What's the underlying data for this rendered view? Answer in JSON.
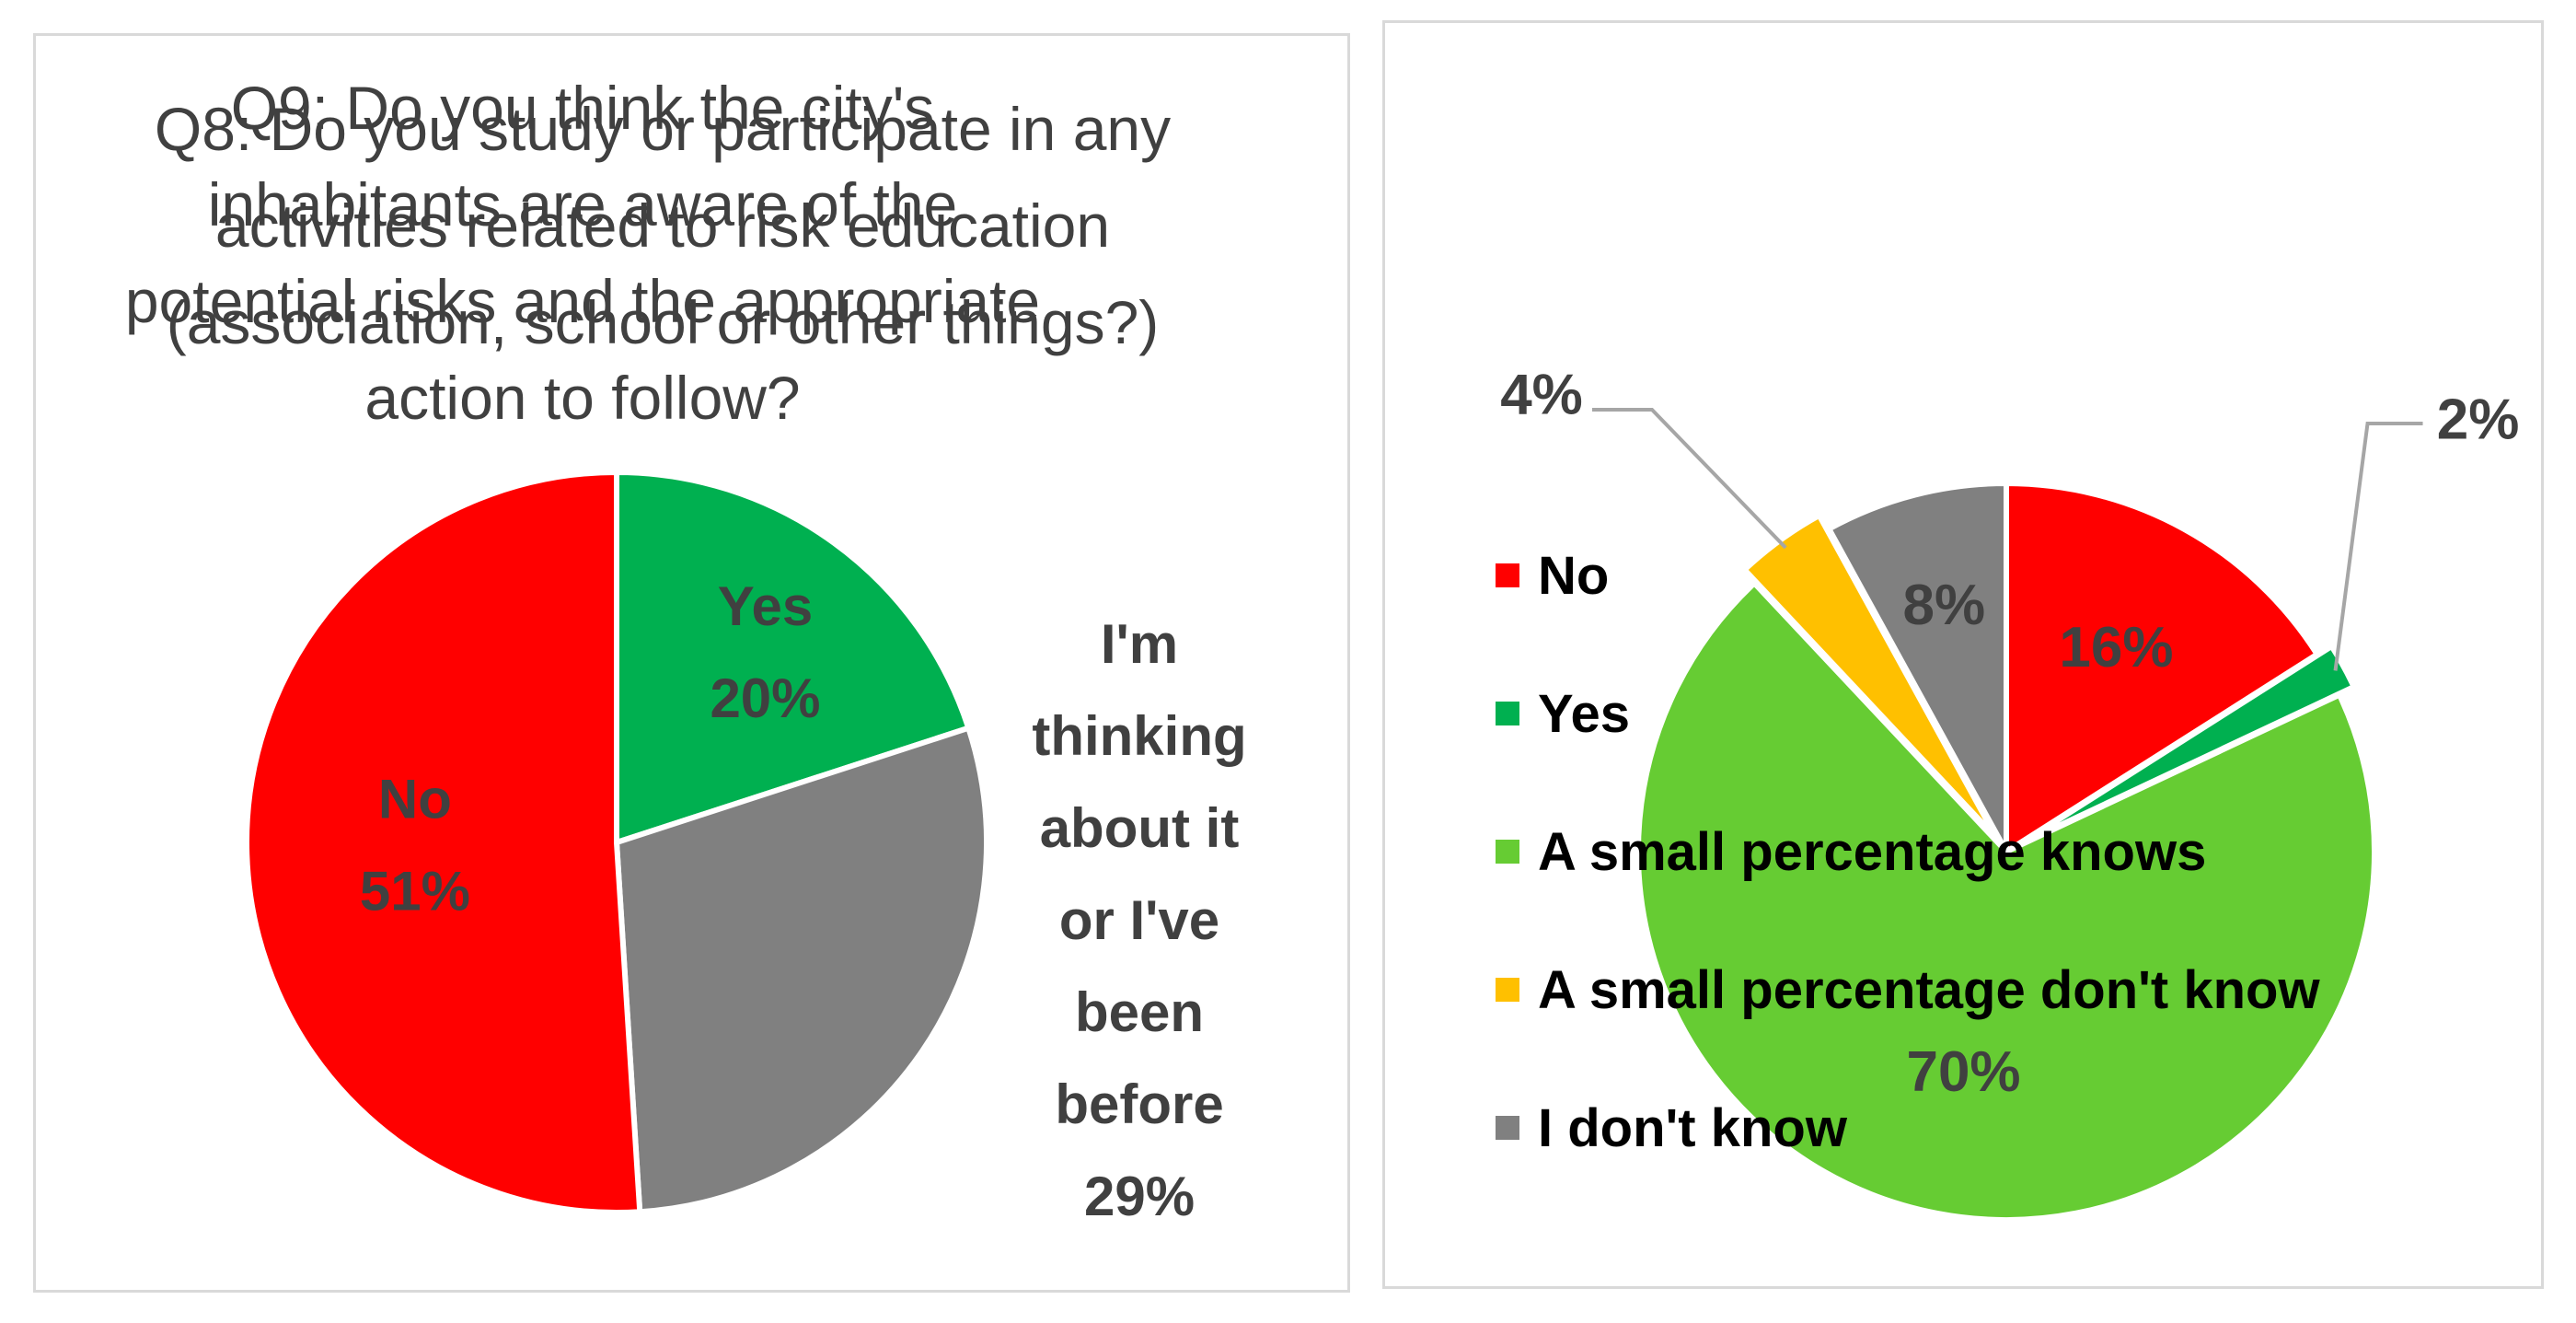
{
  "chart_data": [
    {
      "type": "pie",
      "title": "Q8: Do you study or participate in any activities related to risk education (association, school or other things?)",
      "slices": [
        {
          "name": "Yes",
          "value": 20,
          "label": "20%",
          "color": "#00b050"
        },
        {
          "name": "I'm thinking about it or I've been before",
          "value": 29,
          "label": "29%",
          "color": "#808080"
        },
        {
          "name": "No",
          "value": 51,
          "label": "51%",
          "color": "#ff0000"
        }
      ],
      "outside_label_text": [
        "I'm",
        "thinking",
        "about it",
        "or I've",
        "been",
        "before",
        "29%"
      ]
    },
    {
      "type": "pie",
      "title": "Q9: Do you think the city's inhabitants are aware of the potential risks and the appropriate action to follow?",
      "slices": [
        {
          "name": "No",
          "value": 16,
          "label": "16%",
          "color": "#ff0000"
        },
        {
          "name": "Yes",
          "value": 2,
          "label": "2%",
          "color": "#00b050"
        },
        {
          "name": "A small percentage knows",
          "value": 70,
          "label": "70%",
          "color": "#66cc33"
        },
        {
          "name": "A small percentage don't know",
          "value": 4,
          "label": "4%",
          "color": "#ffc000"
        },
        {
          "name": "I don't know",
          "value": 8,
          "label": "8%",
          "color": "#808080"
        }
      ],
      "legend": {
        "position": "left",
        "items": [
          "No",
          "Yes",
          "A small percentage knows",
          "A small percentage don't know",
          "I don't know"
        ]
      }
    }
  ]
}
